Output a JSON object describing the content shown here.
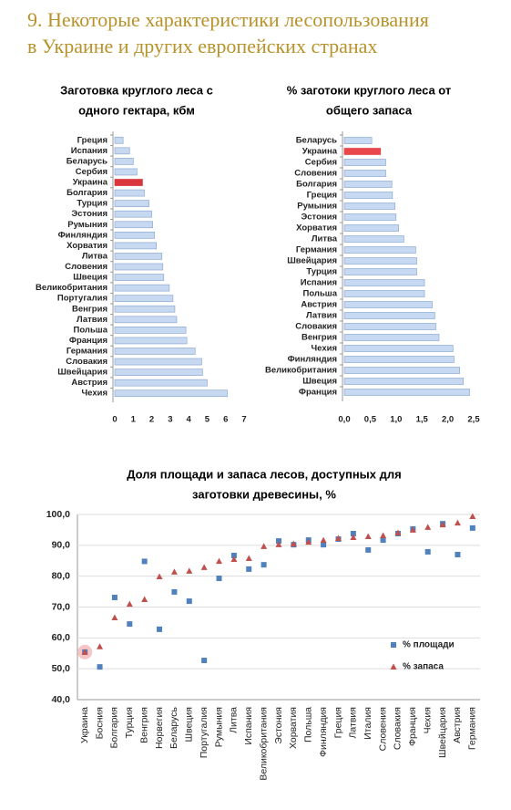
{
  "title": [
    "9. Некоторые характеристики лесопользования",
    "в Украине и других европейских странах"
  ],
  "chart_data": [
    {
      "type": "barh",
      "title": [
        "Заготовка круглого леса с",
        "одного гектара, кбм"
      ],
      "categories": [
        "Греция",
        "Испания",
        "Беларусь",
        "Сербия",
        "Украина",
        "Болгария",
        "Турция",
        "Эстония",
        "Румыния",
        "Финляндия",
        "Хорватия",
        "Литва",
        "Словения",
        "Швеция",
        "Великобритания",
        "Португалия",
        "Венгрия",
        "Латвия",
        "Польша",
        "Франция",
        "Германия",
        "Словакия",
        "Швейцария",
        "Австрия",
        "Чехия"
      ],
      "values": [
        0.45,
        0.8,
        1.0,
        1.2,
        1.5,
        1.6,
        1.85,
        2.0,
        2.05,
        2.15,
        2.25,
        2.55,
        2.6,
        2.65,
        2.95,
        3.15,
        3.25,
        3.35,
        3.85,
        3.9,
        4.35,
        4.7,
        4.75,
        5.0,
        6.1
      ],
      "colors": [
        "#c6d9f1",
        "#c6d9f1",
        "#c6d9f1",
        "#c6d9f1",
        "#d9363e",
        "#c6d9f1",
        "#c6d9f1",
        "#c6d9f1",
        "#c6d9f1",
        "#c6d9f1",
        "#c6d9f1",
        "#c6d9f1",
        "#c6d9f1",
        "#c6d9f1",
        "#c6d9f1",
        "#c6d9f1",
        "#c6d9f1",
        "#c6d9f1",
        "#c6d9f1",
        "#c6d9f1",
        "#c6d9f1",
        "#c6d9f1",
        "#c6d9f1",
        "#c6d9f1",
        "#c6d9f1"
      ],
      "xlim": [
        0,
        7
      ],
      "xticks": [
        0,
        1,
        2,
        3,
        4,
        5,
        6,
        7
      ]
    },
    {
      "type": "barh",
      "title": [
        "% заготоки круглого леса от",
        "общего запаса"
      ],
      "categories": [
        "Беларусь",
        "Украина",
        "Сербия",
        "Словения",
        "Болгария",
        "Греция",
        "Румыния",
        "Эстония",
        "Хорватия",
        "Литва",
        "Германия",
        "Швейцария",
        "Турция",
        "Испания",
        "Польша",
        "Австрия",
        "Латвия",
        "Словакия",
        "Венгрия",
        "Чехия",
        "Финляндия",
        "Великобритания",
        "Швеция",
        "Франция"
      ],
      "values": [
        0.53,
        0.7,
        0.8,
        0.8,
        0.92,
        0.93,
        0.98,
        1.0,
        1.05,
        1.15,
        1.38,
        1.4,
        1.4,
        1.55,
        1.55,
        1.7,
        1.75,
        1.77,
        1.83,
        2.1,
        2.12,
        2.23,
        2.3,
        2.42
      ],
      "colors": [
        "#c6d9f1",
        "#e8474c",
        "#c6d9f1",
        "#c6d9f1",
        "#c6d9f1",
        "#c6d9f1",
        "#c6d9f1",
        "#c6d9f1",
        "#c6d9f1",
        "#c6d9f1",
        "#c6d9f1",
        "#c6d9f1",
        "#c6d9f1",
        "#c6d9f1",
        "#c6d9f1",
        "#c6d9f1",
        "#c6d9f1",
        "#c6d9f1",
        "#c6d9f1",
        "#c6d9f1",
        "#c6d9f1",
        "#c6d9f1",
        "#c6d9f1",
        "#c6d9f1"
      ],
      "xlim": [
        0,
        2.5
      ],
      "xticks": [
        {
          "value": 0,
          "label": "0,0"
        },
        {
          "value": 0.5,
          "label": "0,5"
        },
        {
          "value": 1,
          "label": "1,0"
        },
        {
          "value": 1.5,
          "label": "1,5"
        },
        {
          "value": 2,
          "label": "2,0"
        },
        {
          "value": 2.5,
          "label": "2,5"
        }
      ]
    },
    {
      "type": "scatter",
      "title": [
        "Доля площади и запаса лесов, доступных для",
        "заготовки древесины, %"
      ],
      "categories": [
        "Украина",
        "Босния",
        "Болгария",
        "Турция",
        "Венгрия",
        "Норвегия",
        "Беларусь",
        "Швеция",
        "Португалия",
        "Румыния",
        "Литва",
        "Испания",
        "Великобритания",
        "Эстония",
        "Хорватия",
        "Польша",
        "Финляндия",
        "Греция",
        "Латвия",
        "Италия",
        "Словения",
        "Словакия",
        "Франция",
        "Чехия",
        "Швейцария",
        "Австрия",
        "Германия"
      ],
      "series": [
        {
          "name": "% площади",
          "color": "#4f81bd",
          "marker": "square",
          "values": [
            55.4,
            50.6,
            73.1,
            64.5,
            84.8,
            62.8,
            74.9,
            71.9,
            52.7,
            79.3,
            86.7,
            82.3,
            83.7,
            91.4,
            90.2,
            91.7,
            90.2,
            92.0,
            93.8,
            88.5,
            91.7,
            93.8,
            95.3,
            87.9,
            97.0,
            87.0,
            95.6
          ]
        },
        {
          "name": "% запаса",
          "color": "#c0504d",
          "marker": "triangle",
          "values": [
            55.4,
            57.2,
            66.6,
            71.0,
            72.5,
            79.9,
            81.4,
            81.7,
            82.9,
            84.9,
            85.5,
            85.8,
            89.7,
            90.3,
            90.5,
            91.1,
            91.7,
            92.3,
            92.6,
            92.9,
            93.2,
            94.1,
            95.0,
            95.9,
            96.7,
            97.3,
            99.4
          ]
        }
      ],
      "ylim": [
        40,
        100
      ],
      "yticks": [
        {
          "value": 40,
          "label": "40,0"
        },
        {
          "value": 50,
          "label": "50,0"
        },
        {
          "value": 60,
          "label": "60,0"
        },
        {
          "value": 70,
          "label": "70,0"
        },
        {
          "value": 80,
          "label": "80,0"
        },
        {
          "value": 90,
          "label": "90,0"
        },
        {
          "value": 100,
          "label": "100,0"
        }
      ],
      "grid": true,
      "legend": "right"
    }
  ]
}
